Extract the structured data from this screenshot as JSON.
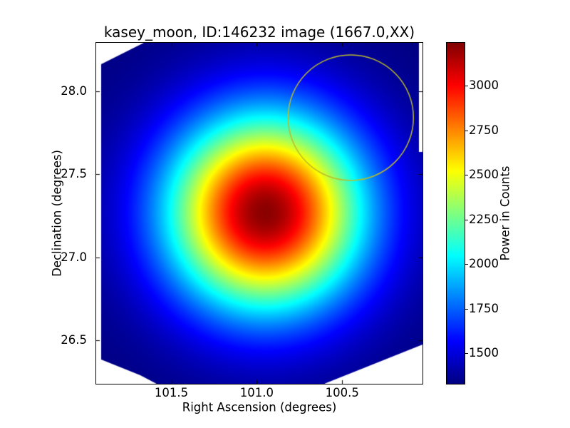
{
  "chart_data": {
    "type": "heatmap",
    "title": "kasey_moon, ID:146232 image (1667.0,XX)",
    "xlabel": "Right Ascension (degrees)",
    "ylabel": "Declination (degrees)",
    "x_axis_reversed": true,
    "xlim": [
      101.94,
      100.03
    ],
    "ylim": [
      26.24,
      28.29
    ],
    "x_ticks": [
      101.5,
      101.0,
      100.5
    ],
    "x_tick_labels": [
      "101.5",
      "101.0",
      "100.5"
    ],
    "y_ticks": [
      28.0,
      27.5,
      27.0,
      26.5
    ],
    "y_tick_labels": [
      "28.0",
      "27.5",
      "27.0",
      "26.5"
    ],
    "grid": false,
    "legend": null,
    "colormap": "jet",
    "axes_facecolor": "#ffffff",
    "text_color": "#000000",
    "colorbar": {
      "label": "Power in Counts",
      "side": "right",
      "clim": [
        1328,
        3240
      ],
      "ticks": [
        3000,
        2750,
        2500,
        2250,
        2000,
        1750,
        1500
      ],
      "tick_labels": [
        "3000",
        "2750",
        "2500",
        "2250",
        "2000",
        "1750",
        "1500"
      ]
    },
    "source_model": {
      "shape": "gaussian",
      "center_ra_deg": 100.95,
      "center_dec_deg": 27.27,
      "sigma_ra_deg": 0.4,
      "sigma_dec_deg": 0.41,
      "peak_counts": 3220,
      "background_counts": 1330
    },
    "overlay_circle": {
      "center_ra_deg": 100.45,
      "center_dec_deg": 27.84,
      "radius_deg": 0.367,
      "color": "#bcbc2a",
      "line_width": 1.5
    },
    "mask_color": "#ffffff",
    "mask_cut_polygons_axes_fraction": [
      [
        [
          0,
          0
        ],
        [
          0.146,
          0
        ],
        [
          0.0153,
          0.063
        ],
        [
          0.0153,
          0.932
        ],
        [
          0,
          0.932
        ]
      ],
      [
        [
          0,
          0.918
        ],
        [
          0.0153,
          0.929
        ],
        [
          0.135,
          0.975
        ],
        [
          0.185,
          1.0
        ],
        [
          0,
          1.0
        ]
      ],
      [
        [
          0.699,
          1.0
        ],
        [
          1.0,
          0.885
        ],
        [
          1.0,
          1.0
        ]
      ],
      [
        [
          0.989,
          0
        ],
        [
          1.0,
          0
        ],
        [
          1.0,
          0.32
        ],
        [
          0.989,
          0.32
        ]
      ]
    ]
  }
}
